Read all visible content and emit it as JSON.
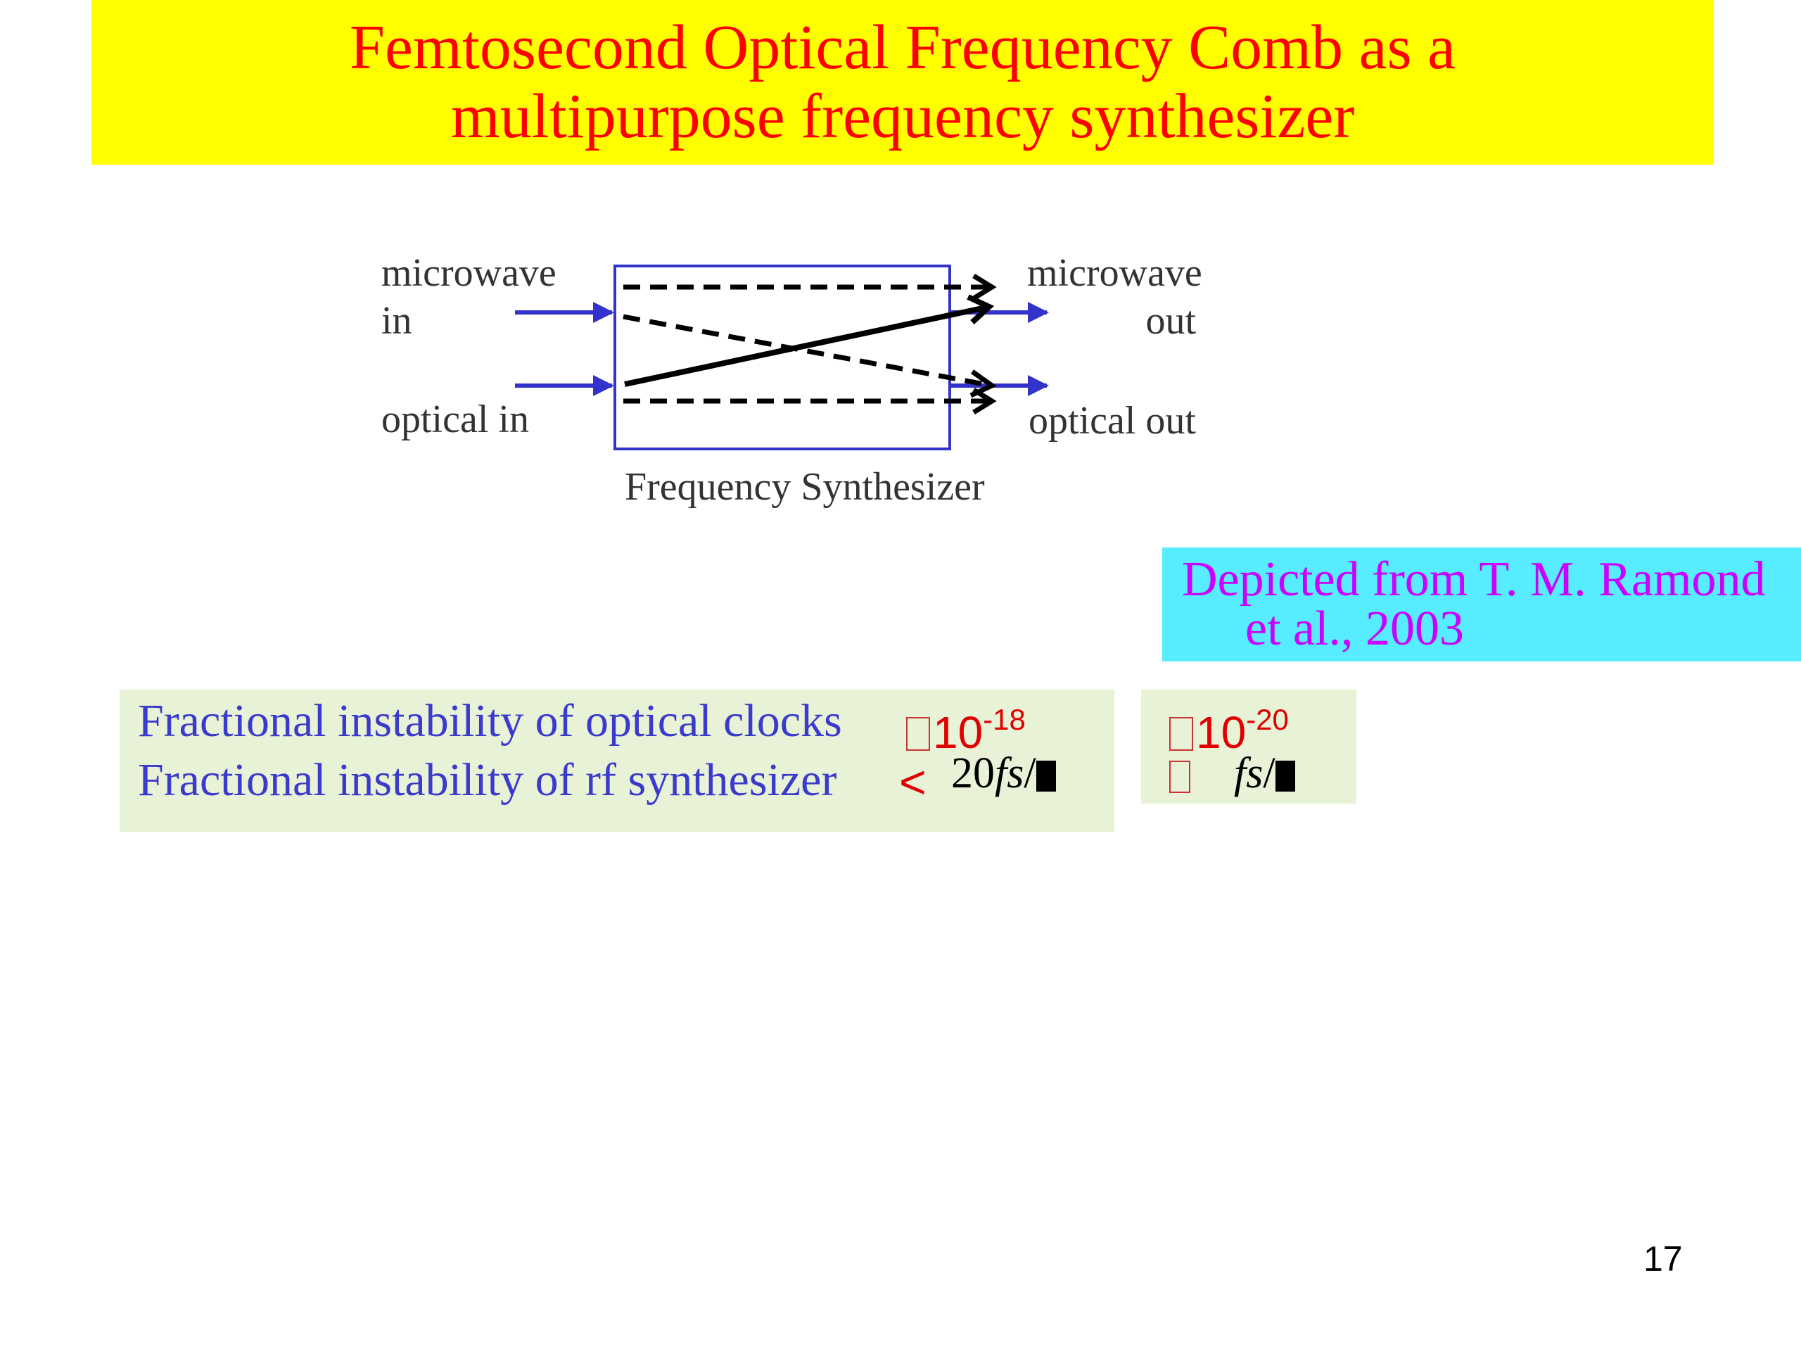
{
  "title": {
    "line1": "Femtosecond Optical Frequency Comb as a",
    "line2": "multipurpose frequency synthesizer"
  },
  "diagram": {
    "microwave_in_line1": "microwave",
    "microwave_in_line2": "in",
    "optical_in": "optical in",
    "microwave_out_line1": "microwave",
    "microwave_out_line2": "out",
    "optical_out": "optical out",
    "box_caption": "Frequency Synthesizer",
    "colors": {
      "input_arrows": "#3333cc",
      "box_border": "#3333cc",
      "inner_arrows": "#000000"
    }
  },
  "citation": {
    "line1": "Depicted from T. M. Ramond",
    "line2": "et al., 2003"
  },
  "info": {
    "optical_clocks_text": "Fractional instability of optical clocks",
    "optical_clocks_base": "10",
    "optical_clocks_exp": "-18",
    "rf_synth_text": "Fractional instability of rf synthesizer",
    "rf_synth_lt": "<",
    "rf_synth_value": "20",
    "rf_synth_unit": "fs",
    "rf_synth_slash": "/",
    "side_base": "10",
    "side_exp": "-20",
    "side_unit": "fs",
    "side_slash": "/"
  },
  "page_number": "17",
  "colors": {
    "title_bg": "#ffff00",
    "title_text": "#ff0000",
    "citation_bg": "#57ecff",
    "citation_text": "#cc00ff",
    "info_bg": "#e8f2d6",
    "info_text": "#3a3acc"
  }
}
